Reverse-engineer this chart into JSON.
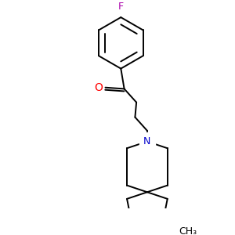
{
  "background_color": "#ffffff",
  "bond_color": "#000000",
  "nitrogen_color": "#0000cc",
  "oxygen_color": "#ff0000",
  "fluorine_color": "#aa00aa",
  "fig_size": [
    3.0,
    3.0
  ],
  "dpi": 100,
  "F_label": "F",
  "O_label": "O",
  "N_label": "N",
  "CH3_label": "CH₃",
  "lw": 1.4
}
